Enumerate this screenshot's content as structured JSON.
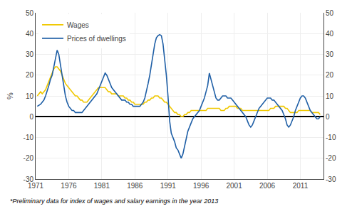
{
  "chart_data": {
    "type": "line",
    "y_label": "%",
    "annotations": [
      "*Preliminary data for index of wages and salary earnings in the year 2013"
    ],
    "x": [
      1971.25,
      1971.5,
      1971.75,
      1972,
      1972.25,
      1972.5,
      1972.75,
      1973,
      1973.25,
      1973.5,
      1973.75,
      1974,
      1974.25,
      1974.5,
      1974.75,
      1975,
      1975.25,
      1975.5,
      1975.75,
      1976,
      1976.25,
      1976.5,
      1976.75,
      1977,
      1977.25,
      1977.5,
      1977.75,
      1978,
      1978.25,
      1978.5,
      1978.75,
      1979,
      1979.25,
      1979.5,
      1979.75,
      1980,
      1980.25,
      1980.5,
      1980.75,
      1981,
      1981.25,
      1981.5,
      1981.75,
      1982,
      1982.25,
      1982.5,
      1982.75,
      1983,
      1983.25,
      1983.5,
      1983.75,
      1984,
      1984.25,
      1984.5,
      1984.75,
      1985,
      1985.25,
      1985.5,
      1985.75,
      1986,
      1986.25,
      1986.5,
      1986.75,
      1987,
      1987.25,
      1987.5,
      1987.75,
      1988,
      1988.25,
      1988.5,
      1988.75,
      1989,
      1989.25,
      1989.5,
      1989.75,
      1990,
      1990.25,
      1990.5,
      1990.75,
      1991,
      1991.25,
      1991.5,
      1991.75,
      1992,
      1992.25,
      1992.5,
      1992.75,
      1993,
      1993.25,
      1993.5,
      1993.75,
      1994,
      1994.25,
      1994.5,
      1994.75,
      1995,
      1995.25,
      1995.5,
      1995.75,
      1996,
      1996.25,
      1996.5,
      1996.75,
      1997,
      1997.25,
      1997.5,
      1997.75,
      1998,
      1998.25,
      1998.5,
      1998.75,
      1999,
      1999.25,
      1999.5,
      1999.75,
      2000,
      2000.25,
      2000.5,
      2000.75,
      2001,
      2001.25,
      2001.5,
      2001.75,
      2002,
      2002.25,
      2002.5,
      2002.75,
      2003,
      2003.25,
      2003.5,
      2003.75,
      2004,
      2004.25,
      2004.5,
      2004.75,
      2005,
      2005.25,
      2005.5,
      2005.75,
      2006,
      2006.25,
      2006.5,
      2006.75,
      2007,
      2007.25,
      2007.5,
      2007.75,
      2008,
      2008.25,
      2008.5,
      2008.75,
      2009,
      2009.25,
      2009.5,
      2009.75,
      2010,
      2010.25,
      2010.5,
      2010.75,
      2011,
      2011.25,
      2011.5,
      2011.75,
      2012,
      2012.25,
      2012.5,
      2012.75,
      2013,
      2013.25,
      2013.5,
      2013.75,
      2014
    ],
    "series": [
      {
        "name": "Wages",
        "color": "#f0c800",
        "values": [
          10,
          11,
          12,
          11,
          12,
          13,
          15,
          17,
          19,
          21,
          23,
          24,
          24,
          23,
          22,
          20,
          18,
          16,
          15,
          14,
          13,
          12,
          11,
          10,
          10,
          9,
          8,
          8,
          7,
          7,
          7,
          8,
          9,
          10,
          11,
          12,
          13,
          14,
          14,
          14,
          14,
          14,
          13,
          12,
          12,
          11,
          11,
          11,
          11,
          10,
          10,
          10,
          10,
          9,
          9,
          8,
          8,
          7,
          7,
          6,
          6,
          6,
          6,
          6,
          6,
          7,
          7,
          8,
          8,
          9,
          9,
          10,
          10,
          10,
          9,
          9,
          8,
          7,
          7,
          6,
          5,
          4,
          3,
          2,
          2,
          1,
          1,
          0,
          0,
          1,
          1,
          2,
          2,
          3,
          3,
          3,
          3,
          3,
          3,
          3,
          3,
          3,
          3,
          4,
          4,
          4,
          4,
          4,
          4,
          4,
          4,
          3,
          3,
          3,
          4,
          4,
          5,
          5,
          5,
          5,
          5,
          4,
          4,
          4,
          3,
          3,
          3,
          3,
          3,
          3,
          3,
          3,
          3,
          3,
          3,
          3,
          3,
          3,
          3,
          3,
          3,
          4,
          4,
          4,
          5,
          5,
          5,
          5,
          5,
          5,
          4,
          4,
          3,
          2,
          2,
          2,
          2,
          2,
          3,
          3,
          3,
          3,
          3,
          3,
          3,
          3,
          2,
          2,
          2,
          2,
          2,
          1
        ]
      },
      {
        "name": "Prices of dwellings",
        "color": "#1f5fa6",
        "values": [
          5,
          5.5,
          6,
          7,
          8,
          10,
          13,
          15,
          18,
          20,
          24,
          28,
          32,
          30,
          25,
          20,
          15,
          10,
          7,
          5,
          4,
          3,
          3,
          2,
          2,
          2,
          2,
          2,
          3,
          4,
          5,
          6,
          7,
          8,
          9,
          10,
          11,
          13,
          15,
          17,
          19,
          21,
          20,
          18,
          16,
          14,
          13,
          12,
          11,
          10,
          9,
          8,
          8,
          8,
          7,
          7,
          6,
          6,
          5,
          5,
          5,
          5,
          5,
          6,
          7,
          9,
          12,
          16,
          20,
          25,
          30,
          35,
          38,
          39,
          39.5,
          39,
          35,
          28,
          20,
          10,
          -2,
          -8,
          -10,
          -12,
          -15,
          -16,
          -18,
          -20,
          -18,
          -14,
          -10,
          -7,
          -5,
          -3,
          -1,
          0,
          1,
          2,
          3,
          5,
          7,
          9,
          12,
          15,
          21,
          18,
          14,
          11,
          9,
          8,
          8,
          9,
          10,
          10,
          10,
          9,
          9,
          9,
          8,
          7,
          6,
          5,
          4,
          3,
          2,
          1,
          0,
          -2,
          -4,
          -5,
          -4,
          -2,
          0,
          2,
          4,
          5,
          6,
          7,
          8,
          9,
          9,
          9,
          8,
          8,
          7,
          6,
          5,
          4,
          3,
          1,
          -1,
          -4,
          -5,
          -4,
          -2,
          0,
          3,
          5,
          7,
          9,
          10,
          10,
          9,
          7,
          5,
          3,
          2,
          1,
          0,
          -1,
          -1,
          0
        ]
      }
    ],
    "xlim": [
      1971,
      2014.5
    ],
    "xticks": [
      1971,
      1976,
      1981,
      1986,
      1991,
      1996,
      2001,
      2006,
      2011
    ],
    "ylim": [
      -30,
      50
    ],
    "yticks": [
      -30,
      -20,
      -10,
      0,
      10,
      20,
      30,
      40,
      50
    ],
    "y2lim": [
      -30,
      50
    ],
    "y2ticks": [
      -30,
      -20,
      -10,
      0,
      10,
      20,
      30,
      40,
      50
    ],
    "grid": true,
    "legend": "upper left"
  }
}
